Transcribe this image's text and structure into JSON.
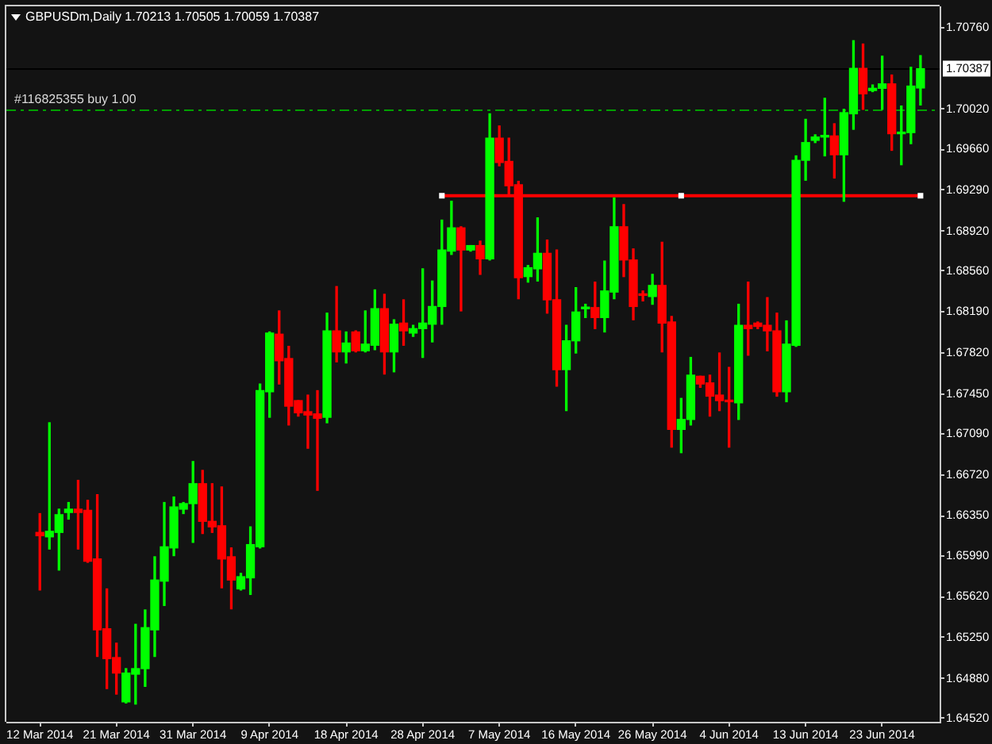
{
  "chart_data": {
    "type": "candlestick",
    "title": "GBPUSDm,Daily 1.70213 1.70505 1.70059 1.70387",
    "categories": [
      "12 Mar 2014",
      null,
      null,
      null,
      null,
      null,
      null,
      null,
      "21 Mar 2014",
      null,
      null,
      null,
      null,
      null,
      null,
      null,
      "31 Mar 2014",
      null,
      null,
      null,
      null,
      null,
      null,
      null,
      "9 Apr 2014",
      null,
      null,
      null,
      null,
      null,
      null,
      null,
      "18 Apr 2014",
      null,
      null,
      null,
      null,
      null,
      null,
      null,
      "28 Apr 2014",
      null,
      null,
      null,
      null,
      null,
      null,
      null,
      "7 May 2014",
      null,
      null,
      null,
      null,
      null,
      null,
      null,
      "16 May 2014",
      null,
      null,
      null,
      null,
      null,
      null,
      null,
      "26 May 2014",
      null,
      null,
      null,
      null,
      null,
      null,
      null,
      "4 Jun 2014",
      null,
      null,
      null,
      null,
      null,
      null,
      null,
      "13 Jun 2014",
      null,
      null,
      null,
      null,
      null,
      null,
      null,
      "23 Jun 2014",
      null,
      null,
      null,
      null
    ],
    "series": [
      {
        "type": "candlestick",
        "ohlc": [
          [
            1.662,
            1.6637,
            1.6568,
            1.6617
          ],
          [
            1.6616,
            1.6719,
            1.6605,
            1.6621
          ],
          [
            1.662,
            1.6641,
            1.6586,
            1.6636
          ],
          [
            1.6638,
            1.6647,
            1.6632,
            1.6641
          ],
          [
            1.6641,
            1.6667,
            1.6605,
            1.6638
          ],
          [
            1.664,
            1.6649,
            1.6593,
            1.6594
          ],
          [
            1.6596,
            1.6654,
            1.6508,
            1.6532
          ],
          [
            1.6533,
            1.6569,
            1.6479,
            1.6506
          ],
          [
            1.6507,
            1.652,
            1.6474,
            1.6493
          ],
          [
            1.6467,
            1.6497,
            1.6466,
            1.6493
          ],
          [
            1.6492,
            1.6537,
            1.6465,
            1.6497
          ],
          [
            1.6497,
            1.655,
            1.6481,
            1.6534
          ],
          [
            1.6532,
            1.6598,
            1.6508,
            1.6577
          ],
          [
            1.6576,
            1.6647,
            1.6554,
            1.6607
          ],
          [
            1.6606,
            1.6652,
            1.6599,
            1.6643
          ],
          [
            1.6641,
            1.6647,
            1.6637,
            1.6646
          ],
          [
            1.6646,
            1.6684,
            1.6611,
            1.6664
          ],
          [
            1.6664,
            1.6676,
            1.6619,
            1.663
          ],
          [
            1.663,
            1.6664,
            1.662,
            1.6625
          ],
          [
            1.6626,
            1.6661,
            1.657,
            1.6596
          ],
          [
            1.6598,
            1.6606,
            1.6551,
            1.6577
          ],
          [
            1.6569,
            1.6583,
            1.6568,
            1.658
          ],
          [
            1.6579,
            1.6625,
            1.6564,
            1.6609
          ],
          [
            1.6607,
            1.6754,
            1.6606,
            1.6748
          ],
          [
            1.6747,
            1.6801,
            1.6724,
            1.68
          ],
          [
            1.6799,
            1.682,
            1.6754,
            1.6775
          ],
          [
            1.6777,
            1.6788,
            1.6717,
            1.6734
          ],
          [
            1.6739,
            1.6739,
            1.6725,
            1.6728
          ],
          [
            1.6729,
            1.6744,
            1.6696,
            1.6726
          ],
          [
            1.6727,
            1.6748,
            1.6658,
            1.6723
          ],
          [
            1.6724,
            1.6818,
            1.6719,
            1.6802
          ],
          [
            1.6802,
            1.6842,
            1.6774,
            1.6783
          ],
          [
            1.6783,
            1.6801,
            1.6773,
            1.6791
          ],
          [
            1.6801,
            1.6802,
            1.6783,
            1.6784
          ],
          [
            1.6784,
            1.682,
            1.6783,
            1.679
          ],
          [
            1.6789,
            1.6839,
            1.6785,
            1.6822
          ],
          [
            1.6822,
            1.6835,
            1.6763,
            1.6783
          ],
          [
            1.6783,
            1.6812,
            1.6765,
            1.6808
          ],
          [
            1.6809,
            1.683,
            1.6789,
            1.6802
          ],
          [
            1.68,
            1.6807,
            1.6797,
            1.6804
          ],
          [
            1.6804,
            1.6858,
            1.6778,
            1.6809
          ],
          [
            1.6808,
            1.6847,
            1.6792,
            1.6824
          ],
          [
            1.6824,
            1.6902,
            1.6808,
            1.6875
          ],
          [
            1.6874,
            1.6919,
            1.6871,
            1.6895
          ],
          [
            1.6895,
            1.6896,
            1.682,
            1.6875
          ],
          [
            1.6875,
            1.6879,
            1.6874,
            1.6879
          ],
          [
            1.6879,
            1.6883,
            1.6853,
            1.6867
          ],
          [
            1.6867,
            1.6998,
            1.6866,
            1.6976
          ],
          [
            1.6976,
            1.6987,
            1.6951,
            1.6954
          ],
          [
            1.6955,
            1.6976,
            1.6925,
            1.6933
          ],
          [
            1.6934,
            1.6937,
            1.6831,
            1.685
          ],
          [
            1.6851,
            1.6861,
            1.6846,
            1.6859
          ],
          [
            1.6858,
            1.6904,
            1.6847,
            1.6872
          ],
          [
            1.6872,
            1.6884,
            1.6818,
            1.683
          ],
          [
            1.683,
            1.6875,
            1.6752,
            1.6767
          ],
          [
            1.6767,
            1.6807,
            1.673,
            1.6793
          ],
          [
            1.6793,
            1.6841,
            1.6782,
            1.6819
          ],
          [
            1.6822,
            1.6826,
            1.6814,
            1.6823
          ],
          [
            1.6823,
            1.6846,
            1.6804,
            1.6814
          ],
          [
            1.6814,
            1.6865,
            1.6801,
            1.6838
          ],
          [
            1.6837,
            1.6922,
            1.6831,
            1.6896
          ],
          [
            1.6896,
            1.6916,
            1.6851,
            1.6866
          ],
          [
            1.6866,
            1.6876,
            1.6812,
            1.6824
          ],
          [
            1.6835,
            1.6838,
            1.6829,
            1.6834
          ],
          [
            1.6833,
            1.6853,
            1.6826,
            1.6843
          ],
          [
            1.6843,
            1.6882,
            1.6783,
            1.6809
          ],
          [
            1.681,
            1.6815,
            1.6697,
            1.6713
          ],
          [
            1.6713,
            1.6741,
            1.6692,
            1.6722
          ],
          [
            1.6722,
            1.6778,
            1.6717,
            1.6762
          ],
          [
            1.6761,
            1.6761,
            1.6751,
            1.6754
          ],
          [
            1.6755,
            1.6762,
            1.6725,
            1.6743
          ],
          [
            1.6744,
            1.6782,
            1.673,
            1.6739
          ],
          [
            1.6739,
            1.6769,
            1.6697,
            1.6738
          ],
          [
            1.6737,
            1.6826,
            1.6722,
            1.6807
          ],
          [
            1.6807,
            1.6846,
            1.678,
            1.6804
          ],
          [
            1.6809,
            1.681,
            1.6804,
            1.6806
          ],
          [
            1.6807,
            1.6832,
            1.6784,
            1.6802
          ],
          [
            1.6802,
            1.6818,
            1.6743,
            1.6747
          ],
          [
            1.6747,
            1.6811,
            1.6738,
            1.679
          ],
          [
            1.6789,
            1.696,
            1.6788,
            1.6956
          ],
          [
            1.6956,
            1.6993,
            1.6938,
            1.6972
          ],
          [
            1.6974,
            1.6979,
            1.6972,
            1.6977
          ],
          [
            1.6977,
            1.7012,
            1.696,
            1.6977
          ],
          [
            1.6978,
            1.6989,
            1.694,
            1.6961
          ],
          [
            1.6961,
            1.7002,
            1.6919,
            1.6999
          ],
          [
            1.6998,
            1.7064,
            1.6984,
            1.7039
          ],
          [
            1.7039,
            1.7061,
            1.7002,
            1.7016
          ],
          [
            1.7019,
            1.7024,
            1.7018,
            1.7021
          ],
          [
            1.7021,
            1.705,
            1.7002,
            1.7025
          ],
          [
            1.7025,
            1.7033,
            1.6965,
            1.698
          ],
          [
            1.698,
            1.7005,
            1.6952,
            1.6981
          ],
          [
            1.6981,
            1.704,
            1.6971,
            1.7023
          ],
          [
            1.70213,
            1.70505,
            1.70059,
            1.70387
          ]
        ],
        "colors": [
          "#ff0000",
          "#00ff00",
          "#00ff00",
          "#00ff00",
          "#ff0000",
          "#ff0000",
          "#ff0000",
          "#ff0000",
          "#ff0000",
          "#00ff00",
          "#00ff00",
          "#00ff00",
          "#00ff00",
          "#00ff00",
          "#00ff00",
          "#00ff00",
          "#00ff00",
          "#ff0000",
          "#ff0000",
          "#ff0000",
          "#ff0000",
          "#00ff00",
          "#00ff00",
          "#00ff00",
          "#00ff00",
          "#ff0000",
          "#ff0000",
          "#ff0000",
          "#ff0000",
          "#ff0000",
          "#00ff00",
          "#ff0000",
          "#00ff00",
          "#ff0000",
          "#00ff00",
          "#00ff00",
          "#ff0000",
          "#00ff00",
          "#ff0000",
          "#00ff00",
          "#00ff00",
          "#00ff00",
          "#00ff00",
          "#00ff00",
          "#ff0000",
          "#00ff00",
          "#ff0000",
          "#00ff00",
          "#ff0000",
          "#ff0000",
          "#ff0000",
          "#00ff00",
          "#00ff00",
          "#ff0000",
          "#ff0000",
          "#00ff00",
          "#00ff00",
          "#00ff00",
          "#ff0000",
          "#00ff00",
          "#00ff00",
          "#ff0000",
          "#ff0000",
          "#ff0000",
          "#00ff00",
          "#ff0000",
          "#ff0000",
          "#00ff00",
          "#00ff00",
          "#ff0000",
          "#ff0000",
          "#ff0000",
          "#ff0000",
          "#00ff00",
          "#ff0000",
          "#ff0000",
          "#ff0000",
          "#ff0000",
          "#00ff00",
          "#00ff00",
          "#00ff00",
          "#00ff00",
          "#00ff00",
          "#ff0000",
          "#00ff00",
          "#00ff00",
          "#ff0000",
          "#00ff00",
          "#00ff00",
          "#ff0000",
          "#00ff00",
          "#00ff00",
          "#00ff00"
        ]
      },
      {
        "type": "line",
        "color": "#ff0000",
        "values": [
          null,
          null,
          null,
          null,
          null,
          null,
          null,
          null,
          null,
          null,
          null,
          null,
          null,
          null,
          null,
          null,
          null,
          null,
          null,
          null,
          null,
          null,
          null,
          null,
          null,
          null,
          null,
          null,
          null,
          null,
          null,
          null,
          null,
          null,
          null,
          null,
          null,
          null,
          null,
          null,
          null,
          null,
          1.6924,
          1.6924,
          1.6924,
          1.6924,
          1.6924,
          1.6924,
          1.6924,
          1.6924,
          1.6924,
          1.6924,
          1.6924,
          1.6924,
          1.6924,
          1.6924,
          1.6924,
          1.6924,
          1.6924,
          1.6924,
          1.6924,
          1.6924,
          1.6924,
          1.6924,
          1.6924,
          1.6924,
          1.6924,
          1.6924,
          1.6924,
          1.6924,
          1.6924,
          1.6924,
          1.6924,
          1.6924,
          1.6924,
          1.6924,
          1.6924,
          1.6924,
          1.6924,
          1.6924,
          1.6924,
          1.6924,
          1.6924,
          1.6924,
          1.6924,
          1.6924,
          1.6924,
          1.6924,
          1.6924,
          1.6924,
          1.6924,
          1.6924,
          1.6924
        ]
      },
      {
        "type": "scatter",
        "color": "#ffffff",
        "marker": "square",
        "values": [
          null,
          null,
          null,
          null,
          null,
          null,
          null,
          null,
          null,
          null,
          null,
          null,
          null,
          null,
          null,
          null,
          null,
          null,
          null,
          null,
          null,
          null,
          null,
          null,
          null,
          null,
          null,
          null,
          null,
          null,
          null,
          null,
          null,
          null,
          null,
          null,
          null,
          null,
          null,
          null,
          null,
          null,
          1.6924,
          null,
          null,
          null,
          null,
          null,
          null,
          null,
          null,
          null,
          null,
          null,
          null,
          null,
          null,
          null,
          null,
          null,
          null,
          null,
          null,
          null,
          null,
          null,
          null,
          1.6924,
          null,
          null,
          null,
          null,
          null,
          null,
          null,
          null,
          null,
          null,
          null,
          null,
          null,
          null,
          null,
          null,
          null,
          null,
          null,
          null,
          null,
          null,
          null,
          null,
          1.6924
        ]
      }
    ],
    "ylim": [
      1.6449,
      1.7095
    ],
    "yticks": [
      {
        "value": 1.7076,
        "label": "1.70760"
      },
      {
        "value": 1.7002,
        "label": "1.70020"
      },
      {
        "value": 1.6966,
        "label": "1.69660"
      },
      {
        "value": 1.6929,
        "label": "1.69290"
      },
      {
        "value": 1.6892,
        "label": "1.68920"
      },
      {
        "value": 1.6856,
        "label": "1.68560"
      },
      {
        "value": 1.6819,
        "label": "1.68190"
      },
      {
        "value": 1.6782,
        "label": "1.67820"
      },
      {
        "value": 1.6745,
        "label": "1.67450"
      },
      {
        "value": 1.6709,
        "label": "1.67090"
      },
      {
        "value": 1.6672,
        "label": "1.66720"
      },
      {
        "value": 1.6635,
        "label": "1.66350"
      },
      {
        "value": 1.6599,
        "label": "1.65990"
      },
      {
        "value": 1.6562,
        "label": "1.65620"
      },
      {
        "value": 1.6525,
        "label": "1.65250"
      },
      {
        "value": 1.6488,
        "label": "1.64880"
      },
      {
        "value": 1.6452,
        "label": "1.64520"
      }
    ],
    "ref_lines": [
      {
        "axis": "y",
        "value": 1.7002,
        "label": "#116825355 buy 1.00",
        "color": "#00a000",
        "line_style": "dashed"
      },
      {
        "axis": "y",
        "value": 1.70387,
        "label": "1.70387",
        "color": "#000000"
      }
    ]
  }
}
